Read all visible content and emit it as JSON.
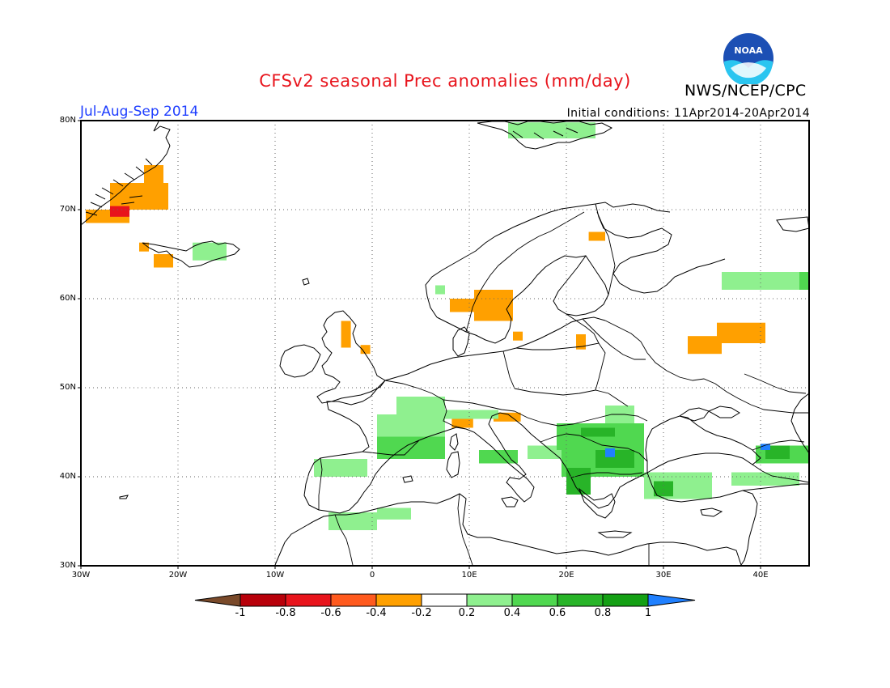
{
  "header": {
    "title": "CFSv2 seasonal Prec anomalies (mm/day)",
    "agency": "NWS/NCEP/CPC",
    "season": "Jul-Aug-Sep 2014",
    "initial_conditions": "Initial conditions: 11Apr2014-20Apr2014",
    "logo_text": "NOAA"
  },
  "axes": {
    "lat_labels": [
      "80N",
      "70N",
      "60N",
      "50N",
      "40N",
      "30N"
    ],
    "lat_values": [
      80,
      70,
      60,
      50,
      40,
      30
    ],
    "lon_labels": [
      "30W",
      "20W",
      "10W",
      "0",
      "10E",
      "20E",
      "30E",
      "40E"
    ],
    "lon_values": [
      -30,
      -20,
      -10,
      0,
      10,
      20,
      30,
      40
    ],
    "lon_range": [
      -30,
      45
    ],
    "lat_range": [
      30,
      80
    ],
    "grid": "dotted"
  },
  "colorbar": {
    "labels": [
      "-1",
      "-0.8",
      "-0.6",
      "-0.4",
      "-0.2",
      "0.2",
      "0.4",
      "0.6",
      "0.8",
      "1"
    ],
    "colors": [
      "#7a4a2a",
      "#b8000a",
      "#e8141c",
      "#ff5a1e",
      "#ffa000",
      "#ffffff",
      "#8ff08f",
      "#50d850",
      "#28b428",
      "#14a014",
      "#2080ff"
    ]
  },
  "anomaly_regions": [
    {
      "category": "-0.4",
      "color": "#ffa000",
      "lon": [
        -29.5,
        -25
      ],
      "lat": [
        68.5,
        70
      ]
    },
    {
      "category": "-0.4",
      "color": "#ffa000",
      "lon": [
        -27,
        -21
      ],
      "lat": [
        70,
        73
      ]
    },
    {
      "category": "-0.4",
      "color": "#ffa000",
      "lon": [
        -23.5,
        -21.5
      ],
      "lat": [
        73,
        75
      ]
    },
    {
      "category": "-0.6",
      "color": "#e8141c",
      "lon": [
        -27,
        -25
      ],
      "lat": [
        69.2,
        70.4
      ]
    },
    {
      "category": "-0.4",
      "color": "#ffa000",
      "lon": [
        -24,
        -23
      ],
      "lat": [
        65.3,
        66.3
      ]
    },
    {
      "category": "-0.4",
      "color": "#ffa000",
      "lon": [
        -22.5,
        -20.5
      ],
      "lat": [
        63.5,
        65
      ]
    },
    {
      "category": "0.2",
      "color": "#8ff08f",
      "lon": [
        -18.5,
        -15
      ],
      "lat": [
        64.3,
        66.3
      ]
    },
    {
      "category": "-0.4",
      "color": "#ffa000",
      "lon": [
        -3.2,
        -2.2
      ],
      "lat": [
        54.5,
        57.5
      ]
    },
    {
      "category": "-0.4",
      "color": "#ffa000",
      "lon": [
        -1.2,
        -0.2
      ],
      "lat": [
        53.8,
        54.8
      ]
    },
    {
      "category": "-0.4",
      "color": "#ffa000",
      "lon": [
        8,
        12.5
      ],
      "lat": [
        58.5,
        60
      ]
    },
    {
      "category": "-0.4",
      "color": "#ffa000",
      "lon": [
        10.5,
        14.5
      ],
      "lat": [
        57.5,
        61
      ]
    },
    {
      "category": "-0.4",
      "color": "#ffa000",
      "lon": [
        14.5,
        15.5
      ],
      "lat": [
        55.3,
        56.3
      ]
    },
    {
      "category": "-0.4",
      "color": "#ffa000",
      "lon": [
        21,
        22
      ],
      "lat": [
        54.3,
        56
      ]
    },
    {
      "category": "-0.4",
      "color": "#ffa000",
      "lon": [
        22.3,
        24
      ],
      "lat": [
        66.5,
        67.5
      ]
    },
    {
      "category": "-0.4",
      "color": "#ffa000",
      "lon": [
        32.5,
        36
      ],
      "lat": [
        53.8,
        55.8
      ]
    },
    {
      "category": "-0.4",
      "color": "#ffa000",
      "lon": [
        35.5,
        40.5
      ],
      "lat": [
        55,
        57.3
      ]
    },
    {
      "category": "-0.4",
      "color": "#ffa000",
      "lon": [
        8.2,
        10.4
      ],
      "lat": [
        45.5,
        46.6
      ]
    },
    {
      "category": "-0.4",
      "color": "#ffa000",
      "lon": [
        12.5,
        15.3
      ],
      "lat": [
        46.2,
        47.2
      ]
    },
    {
      "category": "0.2",
      "color": "#8ff08f",
      "lon": [
        -6,
        -0.5
      ],
      "lat": [
        40,
        42
      ]
    },
    {
      "category": "0.2",
      "color": "#8ff08f",
      "lon": [
        0.5,
        7.5
      ],
      "lat": [
        44,
        47
      ]
    },
    {
      "category": "0.2",
      "color": "#8ff08f",
      "lon": [
        2.5,
        7.5
      ],
      "lat": [
        47,
        49
      ]
    },
    {
      "category": "0.4",
      "color": "#50d850",
      "lon": [
        0.5,
        7.5
      ],
      "lat": [
        42,
        44.5
      ]
    },
    {
      "category": "0.2",
      "color": "#8ff08f",
      "lon": [
        -4.5,
        0.5
      ],
      "lat": [
        34,
        36
      ]
    },
    {
      "category": "0.2",
      "color": "#8ff08f",
      "lon": [
        0.5,
        4
      ],
      "lat": [
        35.2,
        36.5
      ]
    },
    {
      "category": "0.2",
      "color": "#8ff08f",
      "lon": [
        7,
        13
      ],
      "lat": [
        46.5,
        47.5
      ]
    },
    {
      "category": "0.4",
      "color": "#50d850",
      "lon": [
        11,
        15
      ],
      "lat": [
        41.5,
        43
      ]
    },
    {
      "category": "0.2",
      "color": "#8ff08f",
      "lon": [
        16,
        20
      ],
      "lat": [
        42,
        43.5
      ]
    },
    {
      "category": "0.4",
      "color": "#50d850",
      "lon": [
        19,
        28
      ],
      "lat": [
        43,
        46
      ]
    },
    {
      "category": "0.2",
      "color": "#8ff08f",
      "lon": [
        24,
        27
      ],
      "lat": [
        46,
        48
      ]
    },
    {
      "category": "0.4",
      "color": "#50d850",
      "lon": [
        19.5,
        28
      ],
      "lat": [
        40,
        43
      ]
    },
    {
      "category": "0.6",
      "color": "#28b428",
      "lon": [
        20,
        22.5
      ],
      "lat": [
        38,
        41
      ]
    },
    {
      "category": "0.6",
      "color": "#28b428",
      "lon": [
        23,
        27
      ],
      "lat": [
        41,
        43
      ]
    },
    {
      "category": "0.6",
      "color": "#28b428",
      "lon": [
        21.5,
        25
      ],
      "lat": [
        44.5,
        45.5
      ]
    },
    {
      "category": "1",
      "color": "#2080ff",
      "lon": [
        24,
        25
      ],
      "lat": [
        42.2,
        43.2
      ]
    },
    {
      "category": "0.2",
      "color": "#8ff08f",
      "lon": [
        28,
        35
      ],
      "lat": [
        37.5,
        40.5
      ]
    },
    {
      "category": "0.6",
      "color": "#28b428",
      "lon": [
        29,
        31
      ],
      "lat": [
        37.8,
        39.5
      ]
    },
    {
      "category": "0.2",
      "color": "#8ff08f",
      "lon": [
        37,
        44
      ],
      "lat": [
        39,
        40.5
      ]
    },
    {
      "category": "0.4",
      "color": "#50d850",
      "lon": [
        39.5,
        45
      ],
      "lat": [
        41.5,
        43.5
      ]
    },
    {
      "category": "0.6",
      "color": "#28b428",
      "lon": [
        40.5,
        43
      ],
      "lat": [
        42,
        43.5
      ]
    },
    {
      "category": "1",
      "color": "#2080ff",
      "lon": [
        40,
        41
      ],
      "lat": [
        43,
        43.7
      ]
    },
    {
      "category": "0.2",
      "color": "#8ff08f",
      "lon": [
        36,
        45
      ],
      "lat": [
        61,
        63
      ]
    },
    {
      "category": "0.4",
      "color": "#50d850",
      "lon": [
        44,
        45
      ],
      "lat": [
        61,
        63
      ]
    },
    {
      "category": "0.2",
      "color": "#8ff08f",
      "lon": [
        14,
        23
      ],
      "lat": [
        78,
        79.8
      ]
    },
    {
      "category": "0.2",
      "color": "#8ff08f",
      "lon": [
        6.5,
        7.5
      ],
      "lat": [
        60.5,
        61.5
      ]
    }
  ]
}
